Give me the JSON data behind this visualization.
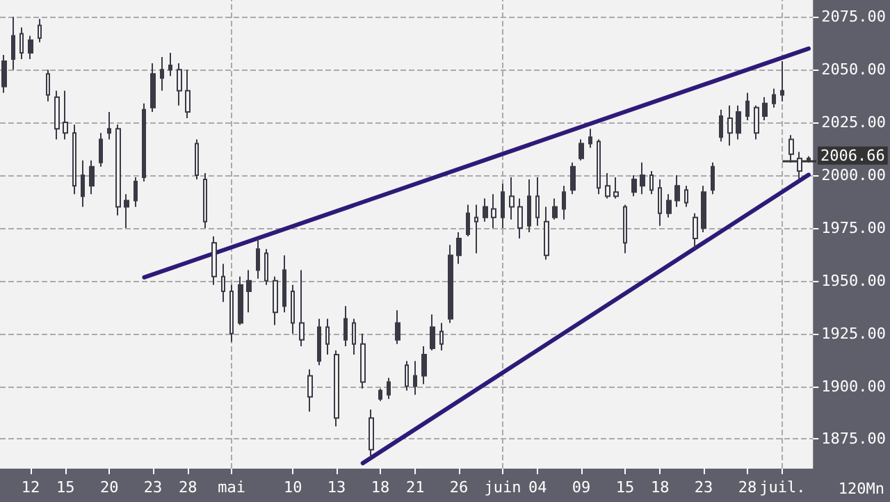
{
  "chart_data": {
    "type": "candlestick",
    "color": "#3a3a46",
    "categories": [
      null,
      null,
      null,
      "12",
      null,
      null,
      null,
      "15",
      null,
      null,
      null,
      null,
      "20",
      null,
      null,
      null,
      null,
      "23",
      null,
      null,
      null,
      "28",
      null,
      null,
      null,
      null,
      "mai",
      null,
      null,
      null,
      null,
      null,
      null,
      "10",
      null,
      null,
      null,
      null,
      "13",
      null,
      null,
      null,
      null,
      "18",
      null,
      null,
      null,
      "21",
      null,
      null,
      null,
      null,
      "26",
      null,
      null,
      null,
      null,
      "juin",
      null,
      null,
      null,
      "04",
      null,
      null,
      null,
      null,
      "09",
      null,
      null,
      null,
      null,
      "15",
      null,
      null,
      null,
      "18",
      null,
      null,
      null,
      null,
      "23",
      null,
      null,
      null,
      null,
      "28",
      null,
      null,
      null,
      "juil.",
      null,
      null,
      null
    ],
    "ohlc": [
      [
        2042,
        2057,
        2039,
        2054
      ],
      [
        2055,
        2075,
        2050,
        2066
      ],
      [
        2067,
        2070,
        2055,
        2058
      ],
      [
        2058,
        2066,
        2055,
        2064
      ],
      [
        2071,
        2074,
        2063,
        2065
      ],
      [
        2048,
        2050,
        2035,
        2038
      ],
      [
        2037,
        2040,
        2017,
        2022
      ],
      [
        2025,
        2040,
        2017,
        2020
      ],
      [
        2020,
        2024,
        1991,
        1995
      ],
      [
        1990,
        2007,
        1985,
        2000
      ],
      [
        1995,
        2007,
        1991,
        2004
      ],
      [
        2006,
        2020,
        2004,
        2017
      ],
      [
        2020,
        2030,
        2017,
        2022
      ],
      [
        2022,
        2024,
        1981,
        1985
      ],
      [
        1985,
        1991,
        1975,
        1988
      ],
      [
        1988,
        1999,
        1985,
        1997
      ],
      [
        1999,
        2034,
        1997,
        2031
      ],
      [
        2032,
        2053,
        2030,
        2048
      ],
      [
        2046,
        2056,
        2040,
        2050
      ],
      [
        2050,
        2058,
        2047,
        2052
      ],
      [
        2050,
        2053,
        2033,
        2040
      ],
      [
        2040,
        2050,
        2027,
        2030
      ],
      [
        2015,
        2017,
        1998,
        2000
      ],
      [
        1998,
        2001,
        1975,
        1978
      ],
      [
        1968,
        1971,
        1948,
        1952
      ],
      [
        1952,
        1958,
        1940,
        1945
      ],
      [
        1945,
        1948,
        1921,
        1925
      ],
      [
        1930,
        1952,
        1929,
        1948
      ],
      [
        1945,
        1955,
        1935,
        1950
      ],
      [
        1955,
        1970,
        1951,
        1965
      ],
      [
        1963,
        1965,
        1948,
        1950
      ],
      [
        1950,
        1952,
        1929,
        1935
      ],
      [
        1938,
        1962,
        1935,
        1955
      ],
      [
        1945,
        1948,
        1925,
        1930
      ],
      [
        1930,
        1955,
        1919,
        1922
      ],
      [
        1905,
        1908,
        1888,
        1895
      ],
      [
        1912,
        1932,
        1910,
        1928
      ],
      [
        1928,
        1932,
        1915,
        1920
      ],
      [
        1915,
        1917,
        1881,
        1885
      ],
      [
        1922,
        1938,
        1919,
        1932
      ],
      [
        1930,
        1932,
        1915,
        1920
      ],
      [
        1920,
        1925,
        1899,
        1902
      ],
      [
        1885,
        1889,
        1866,
        1870
      ],
      [
        1894,
        1899,
        1893,
        1898
      ],
      [
        1896,
        1904,
        1894,
        1902
      ],
      [
        1922,
        1936,
        1920,
        1930
      ],
      [
        1910,
        1912,
        1898,
        1900
      ],
      [
        1900,
        1912,
        1896,
        1905
      ],
      [
        1905,
        1919,
        1901,
        1915
      ],
      [
        1918,
        1934,
        1917,
        1928
      ],
      [
        1926,
        1930,
        1917,
        1920
      ],
      [
        1932,
        1967,
        1930,
        1962
      ],
      [
        1962,
        1973,
        1958,
        1970
      ],
      [
        1972,
        1986,
        1971,
        1982
      ],
      [
        1980,
        1986,
        1963,
        1978
      ],
      [
        1980,
        1989,
        1978,
        1985
      ],
      [
        1984,
        1991,
        1975,
        1980
      ],
      [
        1980,
        1996,
        1975,
        1992
      ],
      [
        1990,
        1999,
        1979,
        1985
      ],
      [
        1985,
        1989,
        1970,
        1975
      ],
      [
        1976,
        1998,
        1973,
        1990
      ],
      [
        1990,
        1999,
        1976,
        1980
      ],
      [
        1978,
        1985,
        1960,
        1962
      ],
      [
        1980,
        1989,
        1979,
        1985
      ],
      [
        1984,
        1995,
        1979,
        1992
      ],
      [
        1993,
        2006,
        1991,
        2004
      ],
      [
        2008,
        2017,
        2007,
        2015
      ],
      [
        2015,
        2022,
        2013,
        2018
      ],
      [
        2016,
        2017,
        1991,
        1994
      ],
      [
        1995,
        2001,
        1989,
        1990
      ],
      [
        1992,
        1999,
        1989,
        1990
      ],
      [
        1985,
        1986,
        1963,
        1968
      ],
      [
        1992,
        2000,
        1990,
        1998
      ],
      [
        1995,
        2006,
        1991,
        2000
      ],
      [
        2000,
        2002,
        1991,
        1993
      ],
      [
        1994,
        1998,
        1976,
        1982
      ],
      [
        1982,
        1991,
        1980,
        1988
      ],
      [
        1988,
        2000,
        1985,
        1995
      ],
      [
        1993,
        1995,
        1985,
        1987
      ],
      [
        1980,
        1982,
        1965,
        1970
      ],
      [
        1975,
        1995,
        1973,
        1992
      ],
      [
        1993,
        2006,
        1991,
        2004
      ],
      [
        2018,
        2031,
        2016,
        2028
      ],
      [
        2027,
        2033,
        2014,
        2020
      ],
      [
        2020,
        2033,
        2017,
        2030
      ],
      [
        2028,
        2039,
        2026,
        2035
      ],
      [
        2032,
        2033,
        2017,
        2020
      ],
      [
        2028,
        2037,
        2026,
        2034
      ],
      [
        2034,
        2041,
        2032,
        2038
      ],
      [
        2038,
        2054,
        2035,
        2040
      ],
      [
        2017,
        2019,
        2006,
        2010
      ],
      [
        2008,
        2011,
        1998,
        2002
      ],
      [
        2007,
        2009,
        2006,
        2008
      ]
    ],
    "series": [
      {
        "type": "line",
        "color": "#2e1a78",
        "values": [
          null,
          null,
          null,
          null,
          null,
          null,
          null,
          null,
          null,
          null,
          null,
          null,
          null,
          null,
          null,
          null,
          1951.6,
          null,
          null,
          null,
          null,
          null,
          null,
          null,
          null,
          null,
          null,
          null,
          null,
          null,
          null,
          null,
          null,
          null,
          null,
          null,
          null,
          null,
          null,
          null,
          null,
          null,
          null,
          null,
          null,
          null,
          null,
          null,
          null,
          null,
          null,
          null,
          null,
          null,
          null,
          null,
          null,
          null,
          null,
          null,
          null,
          null,
          null,
          null,
          null,
          null,
          null,
          null,
          null,
          null,
          null,
          null,
          null,
          null,
          null,
          null,
          null,
          null,
          null,
          null,
          null,
          null,
          null,
          null,
          null,
          null,
          null,
          null,
          null,
          null,
          null,
          null,
          2060
        ]
      },
      {
        "type": "line",
        "color": "#2e1a78",
        "values": [
          null,
          null,
          null,
          null,
          null,
          null,
          null,
          null,
          null,
          null,
          null,
          null,
          null,
          null,
          null,
          null,
          null,
          null,
          null,
          null,
          null,
          null,
          null,
          null,
          null,
          null,
          null,
          null,
          null,
          null,
          null,
          null,
          null,
          null,
          null,
          null,
          null,
          null,
          null,
          null,
          null,
          1863.6,
          null,
          null,
          null,
          null,
          null,
          null,
          null,
          null,
          null,
          null,
          null,
          null,
          null,
          null,
          null,
          null,
          null,
          null,
          null,
          null,
          null,
          null,
          null,
          null,
          null,
          null,
          null,
          null,
          null,
          null,
          null,
          null,
          null,
          null,
          null,
          null,
          null,
          null,
          null,
          null,
          null,
          null,
          null,
          null,
          null,
          null,
          null,
          null,
          null,
          null,
          2000.2
        ]
      }
    ],
    "ylim": [
      1861,
      2083
    ],
    "yticks": [
      {
        "value": 1875,
        "label": "1875.00"
      },
      {
        "value": 1900,
        "label": "1900.00"
      },
      {
        "value": 1925,
        "label": "1925.00"
      },
      {
        "value": 1950,
        "label": "1950.00"
      },
      {
        "value": 1975,
        "label": "1975.00"
      },
      {
        "value": 2000,
        "label": "2000.00"
      },
      {
        "value": 2025,
        "label": "2025.00"
      },
      {
        "value": 2050,
        "label": "2050.00"
      },
      {
        "value": 2075,
        "label": "2075.00"
      }
    ],
    "grid": "y",
    "ref_lines": [
      {
        "axis": "x",
        "value": "mai",
        "line_style": "dashed",
        "color": "#aaaaaa"
      },
      {
        "axis": "x",
        "value": "juin",
        "line_style": "dashed",
        "color": "#aaaaaa"
      },
      {
        "axis": "x",
        "value": "juil.",
        "line_style": "dashed",
        "color": "#aaaaaa"
      },
      {
        "axis": "y",
        "value": 2006.66,
        "label": "2006.66",
        "color": "#333333"
      }
    ],
    "annotations": [
      "120Mn"
    ]
  }
}
